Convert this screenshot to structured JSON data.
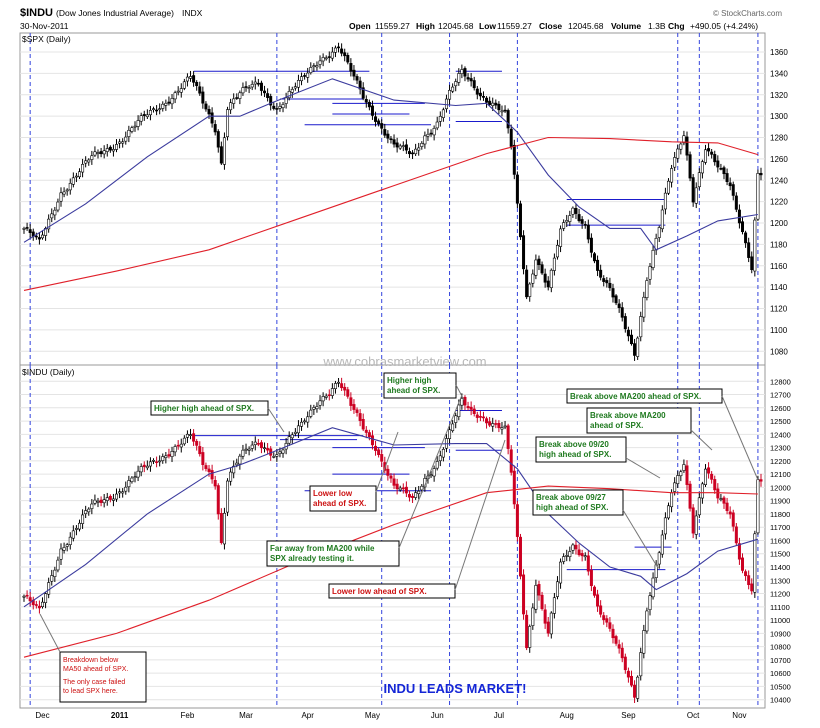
{
  "header": {
    "symbol": "$INDU",
    "name": "(Dow Jones Industrial Average)",
    "exchange": "INDX",
    "date": "30-Nov-2011",
    "open_label": "Open",
    "open": "11559.27",
    "high_label": "High",
    "high": "12045.68",
    "low_label": "Low",
    "low": "11559.27",
    "close_label": "Close",
    "close": "12045.68",
    "volume_label": "Volume",
    "volume": "1.3B",
    "chg_label": "Chg",
    "chg": "+490.05 (+4.24%)",
    "credit": "© StockCharts.com"
  },
  "watermark": "www.cobrasmarketview.com",
  "caption": "INDU LEADS MARKET!",
  "chart_data": [
    {
      "type": "candlestick",
      "panel": "top",
      "title": "$SPX (Daily)",
      "ylim": [
        1070,
        1375
      ],
      "yticks": [
        1080,
        1100,
        1120,
        1140,
        1160,
        1180,
        1200,
        1220,
        1240,
        1260,
        1280,
        1300,
        1320,
        1340,
        1360
      ],
      "x_labels": [
        "Dec",
        "2011",
        "Feb",
        "Mar",
        "Apr",
        "May",
        "Jun",
        "Jul",
        "Aug",
        "Sep",
        "Oct",
        "Nov"
      ],
      "approx_path": [
        [
          0,
          1195
        ],
        [
          5,
          1180
        ],
        [
          12,
          1230
        ],
        [
          22,
          1260
        ],
        [
          32,
          1280
        ],
        [
          40,
          1300
        ],
        [
          48,
          1320
        ],
        [
          54,
          1335
        ],
        [
          58,
          1312
        ],
        [
          62,
          1290
        ],
        [
          64,
          1258
        ],
        [
          66,
          1310
        ],
        [
          70,
          1320
        ],
        [
          76,
          1330
        ],
        [
          82,
          1308
        ],
        [
          90,
          1332
        ],
        [
          96,
          1355
        ],
        [
          102,
          1365
        ],
        [
          106,
          1340
        ],
        [
          110,
          1318
        ],
        [
          114,
          1300
        ],
        [
          120,
          1272
        ],
        [
          126,
          1262
        ],
        [
          130,
          1283
        ],
        [
          134,
          1295
        ],
        [
          138,
          1320
        ],
        [
          142,
          1340
        ],
        [
          145,
          1332
        ],
        [
          148,
          1322
        ],
        [
          152,
          1312
        ],
        [
          156,
          1300
        ],
        [
          158,
          1270
        ],
        [
          160,
          1215
        ],
        [
          163,
          1132
        ],
        [
          166,
          1170
        ],
        [
          170,
          1140
        ],
        [
          174,
          1190
        ],
        [
          178,
          1212
        ],
        [
          182,
          1200
        ],
        [
          186,
          1155
        ],
        [
          190,
          1135
        ],
        [
          194,
          1110
        ],
        [
          198,
          1080
        ],
        [
          202,
          1150
        ],
        [
          206,
          1195
        ],
        [
          210,
          1250
        ],
        [
          214,
          1285
        ],
        [
          217,
          1225
        ],
        [
          221,
          1270
        ],
        [
          225,
          1250
        ],
        [
          229,
          1235
        ],
        [
          233,
          1195
        ],
        [
          236,
          1160
        ],
        [
          238,
          1245
        ]
      ],
      "ma50": [
        [
          0,
          1182
        ],
        [
          20,
          1218
        ],
        [
          40,
          1262
        ],
        [
          60,
          1300
        ],
        [
          70,
          1300
        ],
        [
          80,
          1312
        ],
        [
          100,
          1335
        ],
        [
          120,
          1315
        ],
        [
          140,
          1310
        ],
        [
          150,
          1312
        ],
        [
          160,
          1285
        ],
        [
          170,
          1245
        ],
        [
          180,
          1215
        ],
        [
          190,
          1195
        ],
        [
          200,
          1195
        ],
        [
          205,
          1175
        ],
        [
          215,
          1188
        ],
        [
          225,
          1202
        ],
        [
          238,
          1208
        ]
      ],
      "ma200": [
        [
          0,
          1137
        ],
        [
          30,
          1155
        ],
        [
          60,
          1175
        ],
        [
          90,
          1205
        ],
        [
          120,
          1235
        ],
        [
          150,
          1265
        ],
        [
          170,
          1280
        ],
        [
          190,
          1279
        ],
        [
          210,
          1276
        ],
        [
          225,
          1275
        ],
        [
          238,
          1264
        ]
      ],
      "hlines": [
        [
          55,
          112,
          1342
        ],
        [
          83,
          110,
          1316
        ],
        [
          100,
          130,
          1312
        ],
        [
          100,
          125,
          1302
        ],
        [
          91,
          132,
          1292
        ],
        [
          140,
          155,
          1342
        ],
        [
          140,
          155,
          1295
        ],
        [
          176,
          208,
          1222
        ],
        [
          176,
          208,
          1198
        ]
      ],
      "vlines": [
        2,
        82,
        116,
        138,
        160,
        212,
        219,
        238
      ]
    },
    {
      "type": "candlestick",
      "panel": "bottom",
      "title": "$INDU (Daily)",
      "ylim": [
        10360,
        12900
      ],
      "yticks": [
        10400,
        10500,
        10600,
        10700,
        10800,
        10900,
        11000,
        11100,
        11200,
        11300,
        11400,
        11500,
        11600,
        11700,
        11800,
        11900,
        12000,
        12100,
        12200,
        12300,
        12400,
        12500,
        12600,
        12700,
        12800
      ],
      "x_labels": [
        "Dec",
        "2011",
        "Feb",
        "Mar",
        "Apr",
        "May",
        "Jun",
        "Jul",
        "Aug",
        "Sep",
        "Oct",
        "Nov"
      ],
      "approx_path": [
        [
          0,
          11180
        ],
        [
          5,
          11050
        ],
        [
          12,
          11550
        ],
        [
          22,
          11850
        ],
        [
          32,
          12000
        ],
        [
          40,
          12150
        ],
        [
          48,
          12300
        ],
        [
          54,
          12380
        ],
        [
          58,
          12170
        ],
        [
          62,
          12050
        ],
        [
          64,
          11600
        ],
        [
          66,
          12080
        ],
        [
          70,
          12220
        ],
        [
          76,
          12330
        ],
        [
          82,
          12260
        ],
        [
          90,
          12450
        ],
        [
          96,
          12680
        ],
        [
          102,
          12800
        ],
        [
          106,
          12600
        ],
        [
          110,
          12450
        ],
        [
          114,
          12320
        ],
        [
          120,
          12000
        ],
        [
          126,
          11900
        ],
        [
          130,
          12080
        ],
        [
          134,
          12200
        ],
        [
          138,
          12400
        ],
        [
          142,
          12640
        ],
        [
          145,
          12580
        ],
        [
          148,
          12560
        ],
        [
          152,
          12480
        ],
        [
          156,
          12420
        ],
        [
          158,
          12100
        ],
        [
          160,
          11600
        ],
        [
          163,
          10800
        ],
        [
          166,
          11300
        ],
        [
          170,
          10900
        ],
        [
          174,
          11400
        ],
        [
          178,
          11550
        ],
        [
          182,
          11500
        ],
        [
          186,
          11100
        ],
        [
          190,
          10900
        ],
        [
          194,
          10700
        ],
        [
          198,
          10450
        ],
        [
          202,
          11100
        ],
        [
          206,
          11500
        ],
        [
          210,
          11950
        ],
        [
          214,
          12200
        ],
        [
          217,
          11700
        ],
        [
          221,
          12150
        ],
        [
          225,
          11900
        ],
        [
          229,
          11800
        ],
        [
          233,
          11400
        ],
        [
          236,
          11250
        ],
        [
          238,
          12046
        ]
      ],
      "ma50": [
        [
          0,
          11100
        ],
        [
          20,
          11420
        ],
        [
          40,
          11800
        ],
        [
          60,
          12100
        ],
        [
          70,
          12170
        ],
        [
          80,
          12260
        ],
        [
          100,
          12450
        ],
        [
          120,
          12320
        ],
        [
          140,
          12330
        ],
        [
          150,
          12330
        ],
        [
          160,
          12140
        ],
        [
          170,
          11800
        ],
        [
          180,
          11580
        ],
        [
          190,
          11400
        ],
        [
          200,
          11330
        ],
        [
          205,
          11230
        ],
        [
          215,
          11350
        ],
        [
          225,
          11520
        ],
        [
          238,
          11610
        ]
      ],
      "ma200": [
        [
          0,
          10720
        ],
        [
          30,
          10900
        ],
        [
          60,
          11150
        ],
        [
          90,
          11450
        ],
        [
          120,
          11720
        ],
        [
          150,
          11960
        ],
        [
          170,
          12010
        ],
        [
          190,
          11990
        ],
        [
          210,
          11960
        ],
        [
          225,
          11960
        ],
        [
          238,
          11950
        ]
      ],
      "hlines": [
        [
          55,
          110,
          12390
        ],
        [
          83,
          108,
          12360
        ],
        [
          100,
          130,
          12300
        ],
        [
          100,
          125,
          12100
        ],
        [
          91,
          132,
          11975
        ],
        [
          140,
          155,
          12580
        ],
        [
          140,
          155,
          12280
        ],
        [
          198,
          210,
          11550
        ],
        [
          176,
          208,
          11380
        ]
      ],
      "vlines": [
        2,
        82,
        116,
        138,
        160,
        212,
        219,
        238
      ]
    }
  ],
  "annotations": [
    {
      "text": "Higher high ahead of SPX.",
      "style": "green"
    },
    {
      "text": "Higher high\nahead of SPX.",
      "style": "green"
    },
    {
      "text": "Break above MA200 ahead of SPX.",
      "style": "green"
    },
    {
      "text": "Break above MA200\nahead of SPX.",
      "style": "green"
    },
    {
      "text": "Break above 09/20\nhigh ahead of SPX.",
      "style": "green"
    },
    {
      "text": "Lower low\nahead of SPX.",
      "style": "red"
    },
    {
      "text": "Break above 09/27\nhigh ahead of SPX.",
      "style": "green"
    },
    {
      "text": "Far away from MA200 while\nSPX already testing it.",
      "style": "green"
    },
    {
      "text": "Lower low ahead of SPX.",
      "style": "red"
    },
    {
      "text": "Breakdown below\nMA50 ahead of SPX.\n\nThe only case failed\nto lead SPX here.",
      "style": "note"
    }
  ]
}
